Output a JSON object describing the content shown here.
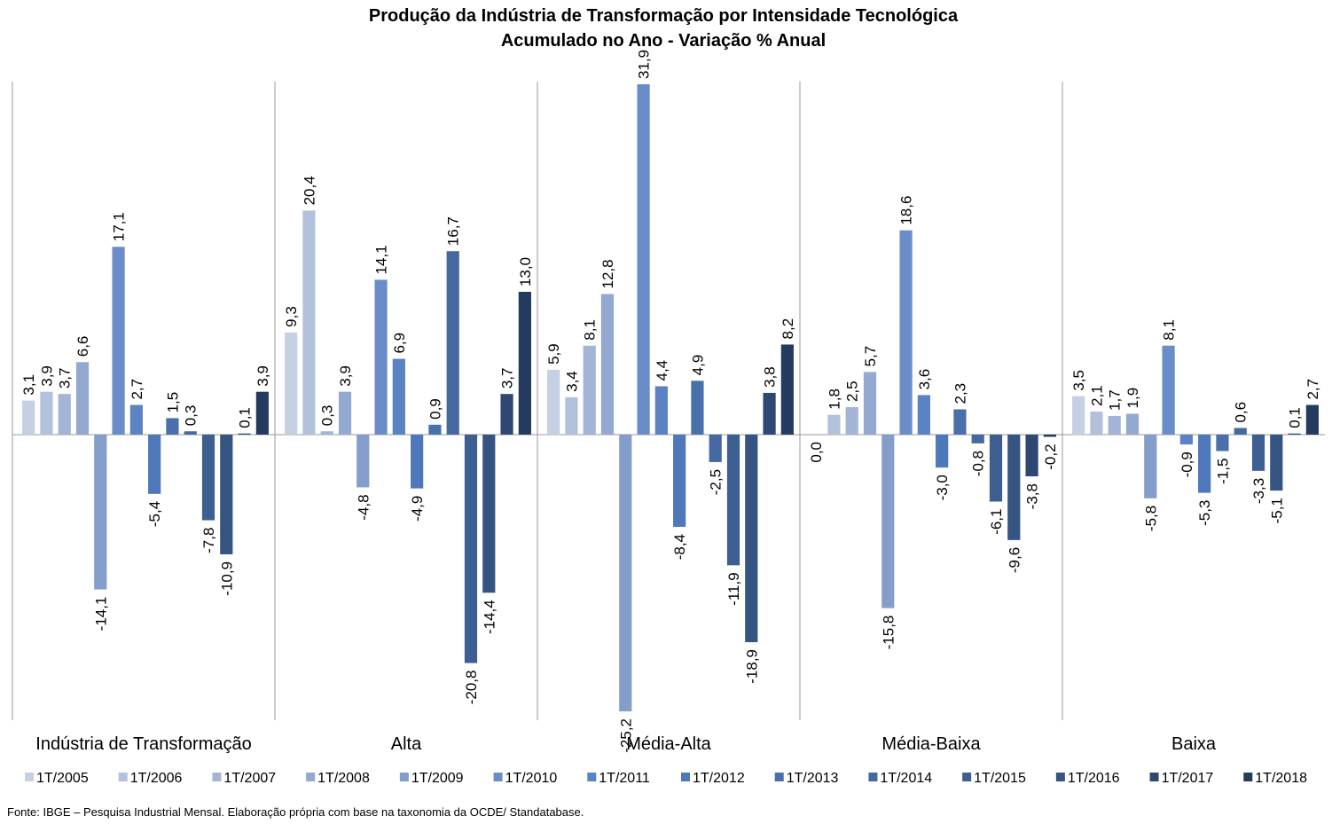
{
  "chart_data": {
    "type": "bar",
    "title": "Produção da Indústria de Transformação por Intensidade Tecnológica",
    "subtitle": "Acumulado no Ano - Variação % Anual",
    "source": "Fonte: IBGE – Pesquisa Industrial Mensal. Elaboração própria com base na taxonomia  da OCDE/ Standatabase.",
    "categories": [
      "Indústria de Transformação",
      "Alta",
      "Média-Alta",
      "Média-Baixa",
      "Baixa"
    ],
    "series": [
      {
        "name": "1T/2005",
        "color": "#c6d0e4",
        "values": [
          3.1,
          9.3,
          5.9,
          0.0,
          3.5
        ],
        "value_labels": [
          "3,1",
          "9,3",
          "5,9",
          "0,0",
          "3,5"
        ]
      },
      {
        "name": "1T/2006",
        "color": "#b3c1dc",
        "values": [
          3.9,
          20.4,
          3.4,
          1.8,
          2.1
        ],
        "value_labels": [
          "3,9",
          "20,4",
          "3,4",
          "1,8",
          "2,1"
        ]
      },
      {
        "name": "1T/2007",
        "color": "#a3b5d6",
        "values": [
          3.7,
          0.3,
          8.1,
          2.5,
          1.7
        ],
        "value_labels": [
          "3,7",
          "0,3",
          "8,1",
          "2,5",
          "1,7"
        ]
      },
      {
        "name": "1T/2008",
        "color": "#93a9d0",
        "values": [
          6.6,
          3.9,
          12.8,
          5.7,
          1.9
        ],
        "value_labels": [
          "6,6",
          "3,9",
          "12,8",
          "5,7",
          "1,9"
        ]
      },
      {
        "name": "1T/2009",
        "color": "#859dca",
        "values": [
          -14.1,
          -4.8,
          -25.2,
          -15.8,
          -5.8
        ],
        "value_labels": [
          "-14,1",
          "-4,8",
          "-25,2",
          "-15,8",
          "-5,8"
        ]
      },
      {
        "name": "1T/2010",
        "color": "#6a8dc9",
        "values": [
          17.1,
          14.1,
          31.9,
          18.6,
          8.1
        ],
        "value_labels": [
          "17,1",
          "14,1",
          "31,9",
          "18,6",
          "8,1"
        ]
      },
      {
        "name": "1T/2011",
        "color": "#5b82c2",
        "values": [
          2.7,
          6.9,
          4.4,
          3.6,
          -0.9
        ],
        "value_labels": [
          "2,7",
          "6,9",
          "4,4",
          "3,6",
          "-0,9"
        ]
      },
      {
        "name": "1T/2012",
        "color": "#4f78bb",
        "values": [
          -5.4,
          -4.9,
          -8.4,
          -3.0,
          -5.3
        ],
        "value_labels": [
          "-5,4",
          "-4,9",
          "-8,4",
          "-3,0",
          "-5,3"
        ]
      },
      {
        "name": "1T/2013",
        "color": "#4a70ac",
        "values": [
          1.5,
          0.9,
          4.9,
          2.3,
          -1.5
        ],
        "value_labels": [
          "1,5",
          "0,9",
          "4,9",
          "2,3",
          "-1,5"
        ]
      },
      {
        "name": "1T/2014",
        "color": "#44689f",
        "values": [
          0.3,
          16.7,
          -2.5,
          -0.8,
          0.6
        ],
        "value_labels": [
          "0,3",
          "16,7",
          "-2,5",
          "-0,8",
          "0,6"
        ]
      },
      {
        "name": "1T/2015",
        "color": "#3d5e91",
        "values": [
          -7.8,
          -20.8,
          -11.9,
          -6.1,
          -3.3
        ],
        "value_labels": [
          "-7,8",
          "-20,8",
          "-11,9",
          "-6,1",
          "-3,3"
        ]
      },
      {
        "name": "1T/2016",
        "color": "#365482",
        "values": [
          -10.9,
          -14.4,
          -18.9,
          -9.6,
          -5.1
        ],
        "value_labels": [
          "-10,9",
          "-14,4",
          "-18,9",
          "-9,6",
          "-5,1"
        ]
      },
      {
        "name": "1T/2017",
        "color": "#2e4871",
        "values": [
          0.1,
          3.7,
          3.8,
          -3.8,
          0.1
        ],
        "value_labels": [
          "0,1",
          "3,7",
          "3,8",
          "-3,8",
          "0,1"
        ]
      },
      {
        "name": "1T/2018",
        "color": "#243a5e",
        "values": [
          3.9,
          13.0,
          8.2,
          -0.2,
          2.7
        ],
        "value_labels": [
          "3,9",
          "13,0",
          "8,2",
          "-0,2",
          "2,7"
        ]
      }
    ]
  }
}
